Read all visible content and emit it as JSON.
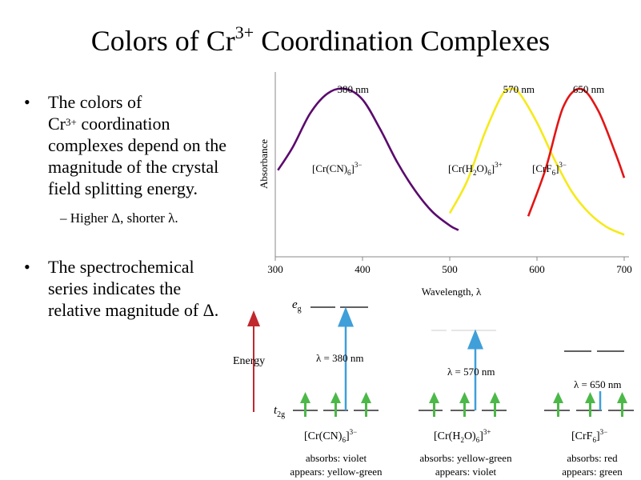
{
  "slide": {
    "title_main": "Colors of Cr",
    "title_sup": "3+",
    "title_rest": " Coordination Complexes",
    "bullet1_line1": "The colors of",
    "bullet1_cr": "Cr",
    "bullet1_sup": "3+",
    "bullet1_line2_rest": " coordination",
    "bullet1_line3": "complexes depend on the",
    "bullet1_line4": "magnitude of the crystal",
    "bullet1_line5": "field splitting energy.",
    "sub_bullet": "– Higher Δ, shorter λ.",
    "bullet2_line1": "The spectrochemical",
    "bullet2_line2": "series indicates the",
    "bullet2_line3": "relative magnitude of Δ.",
    "bullet_symbol": "•"
  },
  "chart_data": {
    "type": "line",
    "xlabel": "Wavelength, λ",
    "ylabel": "Absorbance",
    "xticks": [
      "300",
      "400",
      "500",
      "600",
      "700"
    ],
    "xlim": [
      300,
      700
    ],
    "series": [
      {
        "name": "[Cr(CN)6]3−",
        "peak_label": "380 nm",
        "peak": 380,
        "color": "#5b0a6e",
        "x": [
          303,
          320,
          340,
          360,
          380,
          400,
          420,
          440,
          460,
          480,
          500,
          510
        ],
        "y": [
          0.47,
          0.62,
          0.84,
          0.97,
          1.0,
          0.93,
          0.74,
          0.52,
          0.34,
          0.2,
          0.11,
          0.08
        ]
      },
      {
        "name": "[Cr(H2O)6]3+",
        "peak_label": "570 nm",
        "peak": 570,
        "color": "#f5ea1a",
        "x": [
          500,
          520,
          540,
          560,
          570,
          580,
          600,
          620,
          640,
          660,
          680,
          700
        ],
        "y": [
          0.19,
          0.4,
          0.71,
          0.96,
          1.0,
          0.97,
          0.78,
          0.54,
          0.33,
          0.19,
          0.1,
          0.05
        ]
      },
      {
        "name": "[CrF6]3−",
        "peak_label": "650 nm",
        "peak": 650,
        "color": "#e31515",
        "x": [
          590,
          610,
          630,
          650,
          670,
          690,
          700
        ],
        "y": [
          0.17,
          0.48,
          0.88,
          1.0,
          0.86,
          0.58,
          0.42
        ]
      }
    ]
  },
  "diagram": {
    "energy_label": "Energy",
    "eg_e": "e",
    "eg_sub": "g",
    "t2g_t": "t",
    "t2g_sub": "2g",
    "complexes": [
      {
        "formula_main": "[Cr(CN)",
        "formula_sub": "6",
        "formula_close": "]",
        "formula_sup": "3−",
        "lambda_label": "λ = 380 nm",
        "absorbs": "absorbs: violet",
        "appears": "appears: yellow-green"
      },
      {
        "formula_main": "[Cr(H",
        "formula_sub": "2",
        "formula_mid": "O)",
        "formula_sub2": "6",
        "formula_close": "]",
        "formula_sup": "3+",
        "lambda_label": "λ = 570 nm",
        "absorbs": "absorbs: yellow-green",
        "appears": "appears: violet"
      },
      {
        "formula_main": "[CrF",
        "formula_sub": "6",
        "formula_close": "]",
        "formula_sup": "3−",
        "lambda_label": "λ = 650 nm",
        "absorbs": "absorbs: red",
        "appears": "appears: green"
      }
    ]
  },
  "colors": {
    "arrow_green": "#4cb848",
    "arrow_blue": "#3f9fd9",
    "energy_arrow": "#c0282d"
  }
}
